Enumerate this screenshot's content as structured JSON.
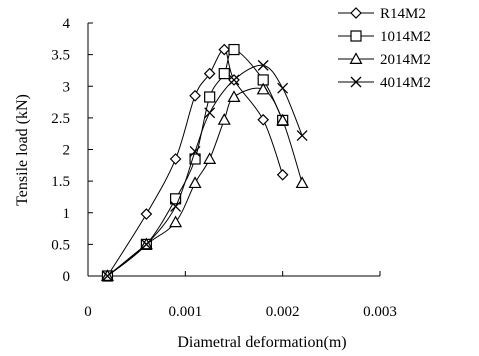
{
  "chart_data": {
    "type": "scatter",
    "xlabel": "Diametral deformation(m)",
    "ylabel": "Tensile load (kN)",
    "xlim": [
      0,
      0.003
    ],
    "ylim": [
      0,
      4
    ],
    "x_ticks": [
      "0",
      "0.001",
      "0.002",
      "0.003"
    ],
    "y_ticks": [
      "0",
      "0.5",
      "1",
      "1.5",
      "2",
      "2.5",
      "3",
      "3.5",
      "4"
    ],
    "grid": false,
    "legend_position": "top-right",
    "series": [
      {
        "name": "R14M2",
        "marker": "diamond",
        "points": [
          [
            0.0002,
            0
          ],
          [
            0.0006,
            0.98
          ],
          [
            0.0009,
            1.85
          ],
          [
            0.0011,
            2.85
          ],
          [
            0.00125,
            3.2
          ],
          [
            0.0014,
            3.58
          ],
          [
            0.0015,
            3.1
          ],
          [
            0.0018,
            2.47
          ],
          [
            0.002,
            1.6
          ]
        ]
      },
      {
        "name": "1014M2",
        "marker": "square",
        "points": [
          [
            0.0002,
            0
          ],
          [
            0.0006,
            0.5
          ],
          [
            0.0009,
            1.22
          ],
          [
            0.0011,
            1.85
          ],
          [
            0.00125,
            2.83
          ],
          [
            0.0014,
            3.2
          ],
          [
            0.0015,
            3.58
          ],
          [
            0.0018,
            3.1
          ],
          [
            0.002,
            2.46
          ]
        ]
      },
      {
        "name": "2014M2",
        "marker": "triangle",
        "points": [
          [
            0.0002,
            0
          ],
          [
            0.0006,
            0.5
          ],
          [
            0.0009,
            0.85
          ],
          [
            0.0011,
            1.47
          ],
          [
            0.00125,
            1.85
          ],
          [
            0.0014,
            2.47
          ],
          [
            0.0015,
            2.83
          ],
          [
            0.0018,
            2.95
          ],
          [
            0.002,
            2.46
          ],
          [
            0.0022,
            1.47
          ]
        ]
      },
      {
        "name": "4014M2",
        "marker": "x",
        "points": [
          [
            0.0002,
            0
          ],
          [
            0.0006,
            0.5
          ],
          [
            0.0009,
            1.1
          ],
          [
            0.0011,
            1.97
          ],
          [
            0.00125,
            2.58
          ],
          [
            0.0015,
            3.1
          ],
          [
            0.0018,
            3.33
          ],
          [
            0.002,
            2.97
          ],
          [
            0.0022,
            2.22
          ]
        ]
      }
    ]
  }
}
